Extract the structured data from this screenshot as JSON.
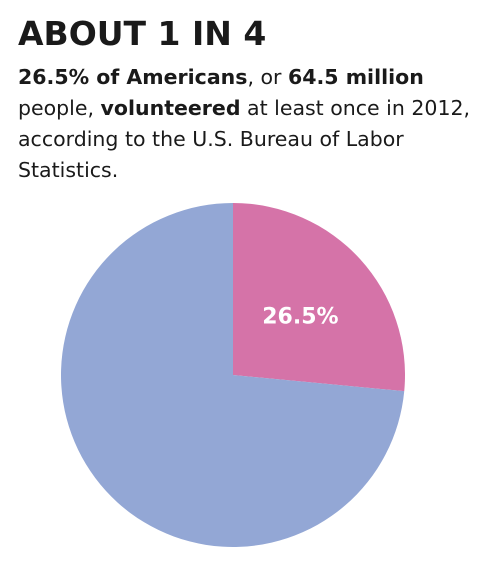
{
  "chart_data": {
    "type": "pie",
    "title": "ABOUT 1 IN 4",
    "subtitle": [
      {
        "text": "26.5% of Americans",
        "bold": true
      },
      {
        "text": ", or ",
        "bold": false
      },
      {
        "text": "64.5 million",
        "bold": true
      },
      {
        "text": " people, ",
        "bold": false
      },
      {
        "text": "volunteered",
        "bold": true
      },
      {
        "text": " at least once in 2012, according to the U.S. Bureau of Labor Statistics.",
        "bold": false
      }
    ],
    "values": [
      26.5,
      73.5
    ],
    "value_labels": [
      "26.5%",
      null
    ],
    "colors": [
      "#d573a8",
      "#93a7d5"
    ]
  }
}
